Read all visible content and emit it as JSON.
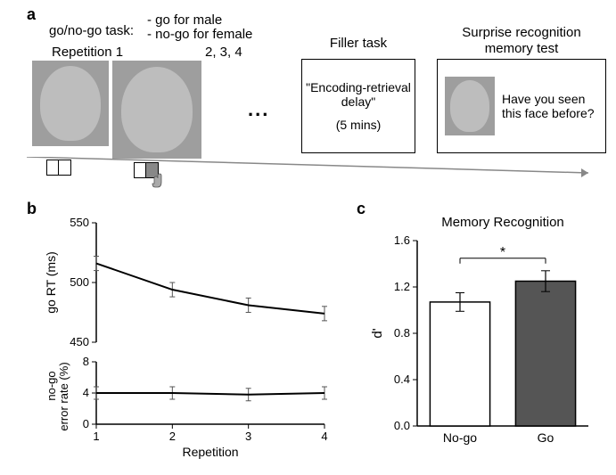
{
  "panelA": {
    "label": "a",
    "task_line1": "go/no-go task:",
    "task_bullet1": "- go for male",
    "task_bullet2": "- no-go for female",
    "rep_label": "Repetition 1",
    "rep_numbers": "2, 3, 4",
    "dots": "...",
    "filler": {
      "title": "Filler task",
      "line1": "\"Encoding-retrieval",
      "line2": "delay\"",
      "line3": "(5 mins)"
    },
    "memory": {
      "title1": "Surprise recognition",
      "title2": "memory test",
      "question1": "Have you seen",
      "question2": "this face before?"
    }
  },
  "panelB": {
    "label": "b",
    "chart": {
      "type": "line+line",
      "xlabel": "Repetition",
      "ylabel_top": "go RT (ms)",
      "ylabel_bot1": "no-go",
      "ylabel_bot2": "error rate (%)",
      "x": [
        1,
        2,
        3,
        4
      ],
      "rt": {
        "y": [
          516,
          494,
          481,
          474
        ],
        "err": [
          6,
          6,
          6,
          6
        ],
        "ylim": [
          450,
          550
        ],
        "yticks": [
          450,
          500,
          550
        ],
        "line_color": "#000000",
        "line_width": 2
      },
      "err_rate": {
        "y": [
          4.0,
          4.0,
          3.8,
          4.0
        ],
        "err": [
          0.8,
          0.8,
          0.8,
          0.8
        ],
        "ylim": [
          0,
          8
        ],
        "yticks": [
          0,
          4,
          8
        ],
        "line_color": "#000000",
        "line_width": 2
      },
      "label_fontsize": 14,
      "tick_fontsize": 13,
      "background": "#ffffff"
    }
  },
  "panelC": {
    "label": "c",
    "chart": {
      "type": "bar",
      "title": "Memory Recognition",
      "xlabel_left": "No-go",
      "xlabel_right": "Go",
      "ylabel": "d'",
      "ylim": [
        0,
        1.6
      ],
      "yticks": [
        0.0,
        0.4,
        0.8,
        1.2,
        1.6
      ],
      "bars": {
        "categories": [
          "No-go",
          "Go"
        ],
        "values": [
          1.07,
          1.25
        ],
        "errors": [
          0.08,
          0.09
        ],
        "colors": [
          "#ffffff",
          "#555555"
        ],
        "border_color": "#000000",
        "bar_width": 0.7
      },
      "sig_marker": "*",
      "title_fontsize": 15,
      "label_fontsize": 15,
      "background": "#ffffff"
    }
  }
}
